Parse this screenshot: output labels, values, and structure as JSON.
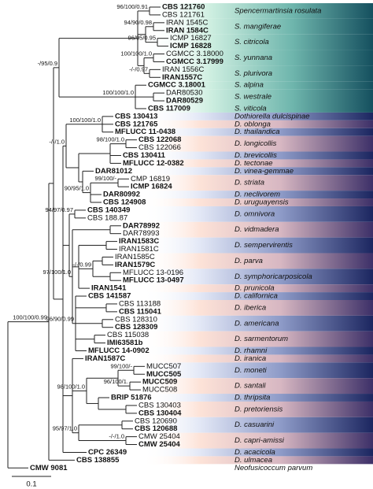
{
  "taxa": [
    {
      "label": "CBS 121760",
      "bold": true
    },
    {
      "label": "CBS 121761",
      "bold": false
    },
    {
      "label": "IRAN 1545C",
      "bold": false
    },
    {
      "label": "IRAN 1584C",
      "bold": true
    },
    {
      "label": "ICMP 16827",
      "bold": false
    },
    {
      "label": "ICMP 16828",
      "bold": true
    },
    {
      "label": "CGMCC 3.18000",
      "bold": false
    },
    {
      "label": "CGMCC 3.17999",
      "bold": true
    },
    {
      "label": "IRAN 1556C",
      "bold": false
    },
    {
      "label": "IRAN1557C",
      "bold": true
    },
    {
      "label": "CGMCC 3.18001",
      "bold": true
    },
    {
      "label": "DAR80530",
      "bold": false
    },
    {
      "label": "DAR80529",
      "bold": true
    },
    {
      "label": "CBS 117009",
      "bold": true
    },
    {
      "label": "CBS 130413",
      "bold": true
    },
    {
      "label": "CBS 121765",
      "bold": true
    },
    {
      "label": "MFLUCC 11-0438",
      "bold": true
    },
    {
      "label": "CBS 122068",
      "bold": true
    },
    {
      "label": "CBS 122066",
      "bold": false
    },
    {
      "label": "CBS 130411",
      "bold": true
    },
    {
      "label": "MFLUCC 12-0382",
      "bold": true
    },
    {
      "label": "DAR81012",
      "bold": true
    },
    {
      "label": "CMP 16819",
      "bold": false
    },
    {
      "label": "ICMP 16824",
      "bold": true
    },
    {
      "label": "DAR80992",
      "bold": true
    },
    {
      "label": "CBS 124908",
      "bold": true
    },
    {
      "label": "CBS 140349",
      "bold": true
    },
    {
      "label": "CBS 188.87",
      "bold": false
    },
    {
      "label": "DAR78992",
      "bold": true
    },
    {
      "label": "DAR78993",
      "bold": false
    },
    {
      "label": "IRAN1583C",
      "bold": true
    },
    {
      "label": "IRAN1581C",
      "bold": false
    },
    {
      "label": "IRAN1585C",
      "bold": false
    },
    {
      "label": "IRAN1579C",
      "bold": true
    },
    {
      "label": "MFLUCC 13-0196",
      "bold": false
    },
    {
      "label": "MFLUCC 13-0497",
      "bold": true
    },
    {
      "label": "IRAN1541",
      "bold": true
    },
    {
      "label": "CBS 141587",
      "bold": true
    },
    {
      "label": "CBS 113188",
      "bold": false
    },
    {
      "label": "CBS 115041",
      "bold": true
    },
    {
      "label": "CBS 128310",
      "bold": false
    },
    {
      "label": "CBS 128309",
      "bold": true
    },
    {
      "label": "CBS 115038",
      "bold": false
    },
    {
      "label": "IMI63581b",
      "bold": true
    },
    {
      "label": "MFLUCC 14-0902",
      "bold": true
    },
    {
      "label": "IRAN1587C",
      "bold": true
    },
    {
      "label": "MUCC507",
      "bold": false
    },
    {
      "label": "MUCC505",
      "bold": true
    },
    {
      "label": "MUCC509",
      "bold": true
    },
    {
      "label": "MUCC508",
      "bold": false
    },
    {
      "label": "BRIP 51876",
      "bold": true
    },
    {
      "label": "CBS 130403",
      "bold": false
    },
    {
      "label": "CBS 130404",
      "bold": true
    },
    {
      "label": "CBS 120690",
      "bold": false
    },
    {
      "label": "CBS 120688",
      "bold": true
    },
    {
      "label": "CMW 25404",
      "bold": false
    },
    {
      "label": "CMW 25404",
      "bold": true
    },
    {
      "label": "CPC 26349",
      "bold": true
    },
    {
      "label": "CBS 138855",
      "bold": true
    },
    {
      "label": "CMW 9081",
      "bold": true
    }
  ],
  "species": [
    "Spencermartinsia rosulata",
    "S. mangiferae",
    "S. citricola",
    "S. yunnana",
    "S. plurivora",
    "S. alpina",
    "S. westrale",
    "S. viticola",
    "Dothiorella dulcispinae",
    "D. oblonga",
    "D. thailandica",
    "D. longicollis",
    "D. brevicollis",
    "D. tectonae",
    "D. vinea-gemmae",
    "D. striata",
    "D. neclivorem",
    "D. uruguayensis",
    "D. omnivora",
    "D. vidmadera",
    "D. sempervirentis",
    "D. parva",
    "D. symphoricarposicola",
    "D. prunicola",
    "D. californica",
    "D. iberica",
    "D. americana",
    "D. sarmentorum",
    "D. rhamni",
    "D. iranica",
    "D. moneti",
    "D. santali",
    "D. thripsita",
    "D. pretoriensis",
    "D. casuarini",
    "D. capri-amissi",
    "D. acacicola",
    "D. ulmacea",
    "Neofusicoccum parvum"
  ],
  "supports": [
    "96/100/0.91",
    "94/90/0.98",
    "96/95/0.95",
    "100/100/1.0",
    "-/-/0.97",
    "100/100/1.0",
    "-/95/0.9",
    "100/100/1.0",
    "98/100/1.0",
    "-/-/1.0",
    "99/100/-",
    "90/95/1.0",
    "94/97/0.97",
    "97/100/1.0",
    "-/-/0.99",
    "96/90/0.99",
    "99/100/-",
    "96/100/1.",
    "98/100/1.0",
    "95/97/1.0",
    "-/-/1.0",
    "100/100/0.99"
  ],
  "scale_label": "0.1"
}
